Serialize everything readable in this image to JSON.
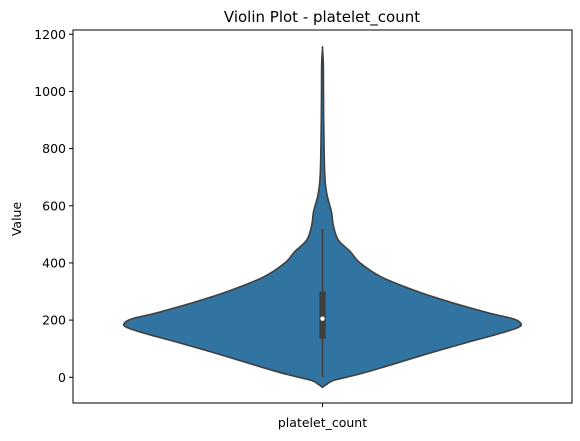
{
  "chart_data": {
    "type": "violin",
    "title": "Violin Plot - platelet_count",
    "xlabel": "",
    "ylabel": "Value",
    "categories": [
      "platelet_count"
    ],
    "ylim": [
      -90,
      1215
    ],
    "yticks": [
      0,
      200,
      400,
      600,
      800,
      1000,
      1200
    ],
    "grid": false,
    "legend": "none",
    "series": [
      {
        "category": "platelet_count",
        "color": "#3274a1",
        "edge_color": "#3f3f3f",
        "box": {
          "q1": 135,
          "median": 205,
          "q3": 300,
          "whisker_low": 0,
          "whisker_high": 520
        },
        "density_profile": [
          {
            "y": -35,
            "w": 0.0
          },
          {
            "y": -25,
            "w": 0.02
          },
          {
            "y": -10,
            "w": 0.06
          },
          {
            "y": 10,
            "w": 0.18
          },
          {
            "y": 40,
            "w": 0.33
          },
          {
            "y": 80,
            "w": 0.52
          },
          {
            "y": 120,
            "w": 0.72
          },
          {
            "y": 150,
            "w": 0.88
          },
          {
            "y": 175,
            "w": 0.99
          },
          {
            "y": 190,
            "w": 1.0
          },
          {
            "y": 205,
            "w": 0.96
          },
          {
            "y": 225,
            "w": 0.84
          },
          {
            "y": 260,
            "w": 0.66
          },
          {
            "y": 300,
            "w": 0.48
          },
          {
            "y": 350,
            "w": 0.3
          },
          {
            "y": 400,
            "w": 0.19
          },
          {
            "y": 440,
            "w": 0.14
          },
          {
            "y": 480,
            "w": 0.08
          },
          {
            "y": 530,
            "w": 0.055
          },
          {
            "y": 580,
            "w": 0.045
          },
          {
            "y": 640,
            "w": 0.022
          },
          {
            "y": 700,
            "w": 0.012
          },
          {
            "y": 800,
            "w": 0.008
          },
          {
            "y": 900,
            "w": 0.006
          },
          {
            "y": 1000,
            "w": 0.005
          },
          {
            "y": 1100,
            "w": 0.004
          },
          {
            "y": 1150,
            "w": 0.0
          }
        ]
      }
    ]
  }
}
